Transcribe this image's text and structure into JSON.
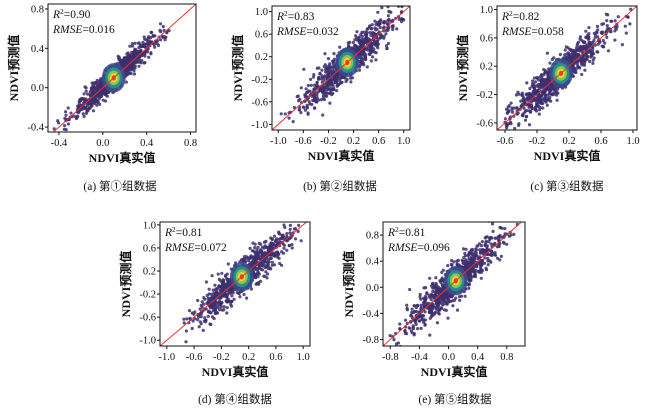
{
  "chart_data": [
    {
      "type": "scatter",
      "caption": "(a) 第①组数据",
      "xlabel": "NDVI真实值",
      "ylabel": "NDVI预测值",
      "xlim": [
        -0.5,
        0.85
      ],
      "ylim": [
        -0.45,
        0.85
      ],
      "xticks": [
        -0.4,
        0.0,
        0.4,
        0.8
      ],
      "yticks": [
        -0.4,
        0.0,
        0.4,
        0.8
      ],
      "xtick_labels": [
        "-0.4",
        "0.0",
        "0.4",
        "0.8"
      ],
      "ytick_labels": [
        "-0.4",
        "0.0",
        "0.4",
        "0.8"
      ],
      "r2_label": "R",
      "r2_value": "=0.90",
      "rmse_label": "RMSE",
      "rmse_value": "=0.016",
      "dense_center": [
        0.1,
        0.1
      ],
      "reference_line": "1:1",
      "point_color": "#3d2f6e"
    },
    {
      "type": "scatter",
      "caption": "(b) 第②组数据",
      "xlabel": "NDVI真实值",
      "ylabel": "NDVI预测值",
      "xlim": [
        -1.1,
        1.1
      ],
      "ylim": [
        -1.1,
        1.1
      ],
      "xticks": [
        -1.0,
        -0.6,
        -0.2,
        0.2,
        0.6,
        1.0
      ],
      "yticks": [
        -1.0,
        -0.6,
        -0.2,
        0.2,
        0.6,
        1.0
      ],
      "xtick_labels": [
        "-1.0",
        "-0.6",
        "-0.2",
        "0.2",
        "0.6",
        "1.0"
      ],
      "ytick_labels": [
        "-1.0",
        "-0.6",
        "-0.2",
        "0.2",
        "0.6",
        "1.0"
      ],
      "r2_label": "R",
      "r2_value": "=0.83",
      "rmse_label": "RMSE",
      "rmse_value": "=0.032",
      "dense_center": [
        0.1,
        0.1
      ],
      "reference_line": "1:1",
      "point_color": "#3d2f6e"
    },
    {
      "type": "scatter",
      "caption": "(c) 第③组数据",
      "xlabel": "NDVI真实值",
      "ylabel": "NDVI预测值",
      "xlim": [
        -0.7,
        1.05
      ],
      "ylim": [
        -0.7,
        1.05
      ],
      "xticks": [
        -0.6,
        -0.2,
        0.2,
        0.6,
        1.0
      ],
      "yticks": [
        -0.6,
        -0.2,
        0.2,
        0.6,
        1.0
      ],
      "xtick_labels": [
        "-0.6",
        "-0.2",
        "0.2",
        "0.6",
        "1.0"
      ],
      "ytick_labels": [
        "-0.6",
        "-0.2",
        "0.2",
        "0.6",
        "1.0"
      ],
      "r2_label": "R",
      "r2_value": "=0.82",
      "rmse_label": "RMSE",
      "rmse_value": "=0.058",
      "dense_center": [
        0.1,
        0.1
      ],
      "reference_line": "1:1",
      "point_color": "#3d2f6e"
    },
    {
      "type": "scatter",
      "caption": "(d) 第④组数据",
      "xlabel": "NDVI真实值",
      "ylabel": "NDVI预测值",
      "xlim": [
        -1.1,
        1.1
      ],
      "ylim": [
        -1.1,
        1.05
      ],
      "xticks": [
        -1.0,
        -0.6,
        -0.2,
        0.2,
        0.6,
        1.0
      ],
      "yticks": [
        -1.0,
        -0.6,
        -0.2,
        0.2,
        0.6,
        1.0
      ],
      "xtick_labels": [
        "-1.0",
        "-0.6",
        "-0.2",
        "0.2",
        "0.6",
        "1.0"
      ],
      "ytick_labels": [
        "-1.0",
        "-0.6",
        "-0.2",
        "0.2",
        "0.6",
        "1.0"
      ],
      "r2_label": "R",
      "r2_value": "=0.81",
      "rmse_label": "RMSE",
      "rmse_value": "=0.072",
      "dense_center": [
        0.1,
        0.1
      ],
      "reference_line": "1:1",
      "point_color": "#3d2f6e"
    },
    {
      "type": "scatter",
      "caption": "(e) 第⑤组数据",
      "xlabel": "NDVI真实值",
      "ylabel": "NDVI预测值",
      "xlim": [
        -0.9,
        1.05
      ],
      "ylim": [
        -0.9,
        1.0
      ],
      "xticks": [
        -0.8,
        -0.4,
        0.0,
        0.4,
        0.8
      ],
      "yticks": [
        -0.8,
        -0.4,
        0.0,
        0.4,
        0.8
      ],
      "xtick_labels": [
        "-0.8",
        "-0.4",
        "0.0",
        "0.4",
        "0.8"
      ],
      "ytick_labels": [
        "-0.8",
        "-0.4",
        "0.0",
        "0.4",
        "0.8"
      ],
      "r2_label": "R",
      "r2_value": "=0.81",
      "rmse_label": "RMSE",
      "rmse_value": "=0.096",
      "dense_center": [
        0.1,
        0.1
      ],
      "reference_line": "1:1",
      "point_color": "#3d2f6e"
    }
  ]
}
